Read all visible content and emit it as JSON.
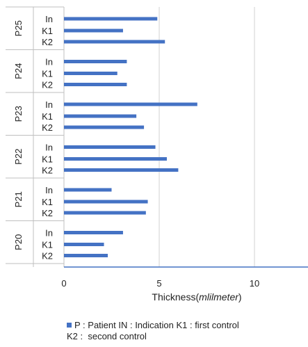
{
  "chart_data": {
    "type": "bar",
    "orientation": "horizontal",
    "groups": [
      {
        "name": "P25",
        "bars": [
          {
            "label": "In",
            "value": 4.9
          },
          {
            "label": "K1",
            "value": 3.1
          },
          {
            "label": "K2",
            "value": 5.3
          }
        ]
      },
      {
        "name": "P24",
        "bars": [
          {
            "label": "In",
            "value": 3.3
          },
          {
            "label": "K1",
            "value": 2.8
          },
          {
            "label": "K2",
            "value": 3.3
          }
        ]
      },
      {
        "name": "P23",
        "bars": [
          {
            "label": "In",
            "value": 7.0
          },
          {
            "label": "K1",
            "value": 3.8
          },
          {
            "label": "K2",
            "value": 4.2
          }
        ]
      },
      {
        "name": "P22",
        "bars": [
          {
            "label": "In",
            "value": 4.8
          },
          {
            "label": "K1",
            "value": 5.4
          },
          {
            "label": "K2",
            "value": 6.0
          }
        ]
      },
      {
        "name": "P21",
        "bars": [
          {
            "label": "In",
            "value": 2.5
          },
          {
            "label": "K1",
            "value": 4.4
          },
          {
            "label": "K2",
            "value": 4.3
          }
        ]
      },
      {
        "name": "P20",
        "bars": [
          {
            "label": "In",
            "value": 3.1
          },
          {
            "label": "K1",
            "value": 2.1
          },
          {
            "label": "K2",
            "value": 2.3
          }
        ]
      }
    ],
    "x_ticks": [
      0,
      5,
      10
    ],
    "xlim": [
      0,
      13
    ],
    "xlabel_main": "Thickness(",
    "xlabel_unit": "mlilmeter",
    "xlabel_close": ")",
    "grid": "vertical",
    "bar_color": "#4472C4",
    "legend": {
      "position": "bottom",
      "line1": "P : Patient IN : Indication K1 : first control",
      "line2": "K2 :  second control"
    }
  }
}
